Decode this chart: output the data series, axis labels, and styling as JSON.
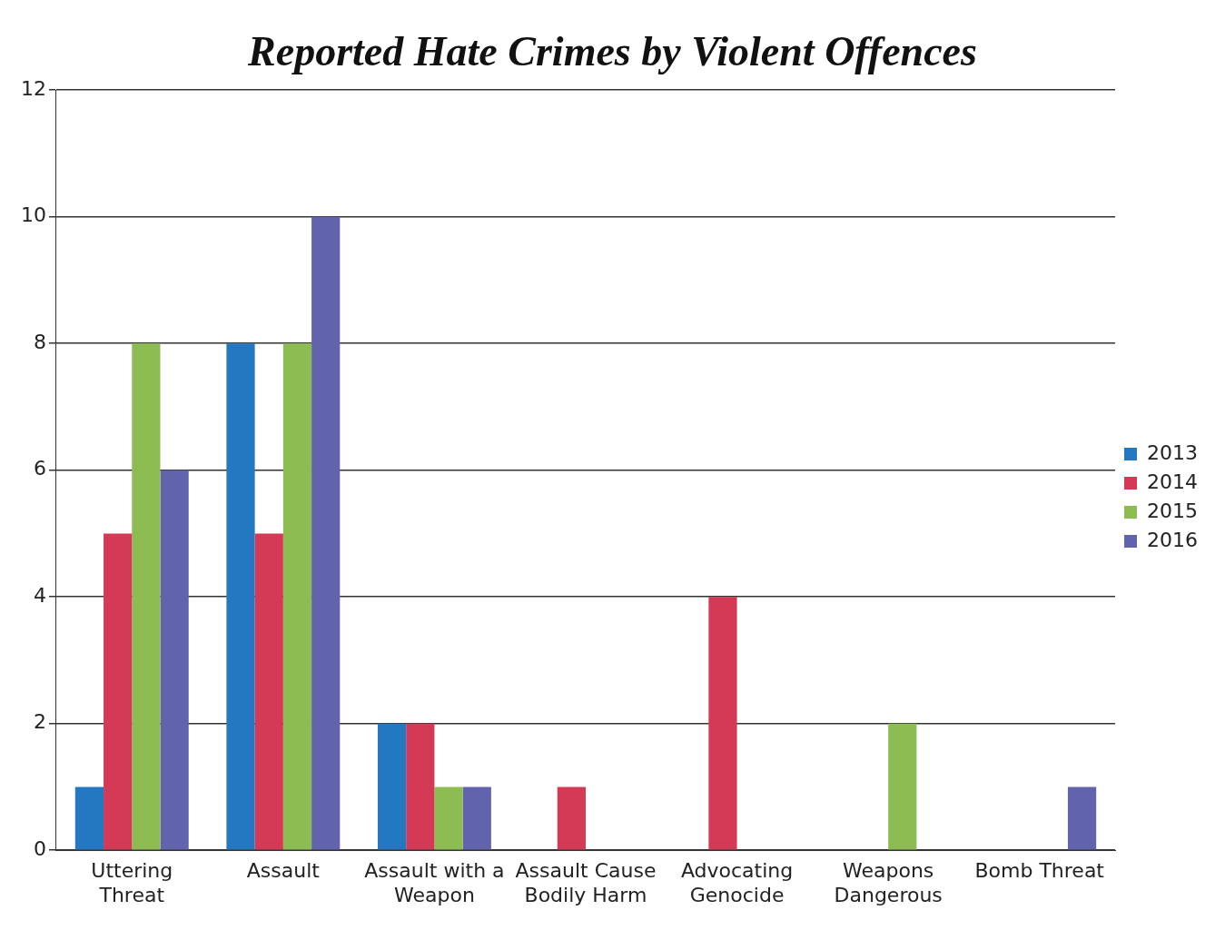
{
  "chart_data": {
    "type": "bar",
    "title": "Reported Hate Crimes by Violent Offences",
    "categories": [
      "Uttering Threat",
      "Assault",
      "Assault with a Weapon",
      "Assault Cause Bodily Harm",
      "Advocating Genocide",
      "Weapons Dangerous",
      "Bomb Threat"
    ],
    "series": [
      {
        "name": "2013",
        "color": "#2478c2",
        "values": [
          1,
          8,
          2,
          0,
          0,
          0,
          0
        ]
      },
      {
        "name": "2014",
        "color": "#d43a55",
        "values": [
          5,
          5,
          2,
          1,
          4,
          0,
          0
        ]
      },
      {
        "name": "2015",
        "color": "#8dbd52",
        "values": [
          8,
          8,
          1,
          0,
          0,
          2,
          0
        ]
      },
      {
        "name": "2016",
        "color": "#6163ad",
        "values": [
          6,
          10,
          1,
          0,
          0,
          0,
          1
        ]
      }
    ],
    "ylim": [
      0,
      12
    ],
    "yticks": [
      0,
      2,
      4,
      6,
      8,
      10,
      12
    ],
    "grid": "y",
    "legend": "right"
  }
}
